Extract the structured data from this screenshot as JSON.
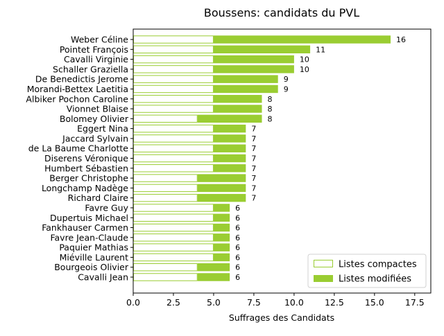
{
  "chart_data": {
    "type": "bar",
    "orientation": "horizontal",
    "stacked": true,
    "title": "Boussens: candidats du PVL",
    "xlabel": "Suffrages des Candidats",
    "ylabel": "",
    "xlim": [
      0,
      18.5
    ],
    "xticks": [
      "0.0",
      "2.5",
      "5.0",
      "7.5",
      "10.0",
      "12.5",
      "15.0",
      "17.5"
    ],
    "xtick_values": [
      0,
      2.5,
      5,
      7.5,
      10,
      12.5,
      15,
      17.5
    ],
    "grid": false,
    "legend_position": "bottom-right",
    "categories": [
      "Weber Céline",
      "Pointet François",
      "Cavalli Virginie",
      "Schaller Graziella",
      "De Benedictis Jerome",
      "Morandi-Bettex Laetitia",
      "Albiker Pochon Caroline",
      "Vionnet Blaise",
      "Bolomey Olivier",
      "Eggert Nina",
      "Jaccard Sylvain",
      "de La Baume Charlotte",
      "Diserens Véronique",
      "Humbert Sébastien",
      "Berger Christophe",
      "Longchamp Nadège",
      "Richard Claire",
      "Favre Guy",
      "Dupertuis Michael",
      "Fankhauser Carmen",
      "Favre Jean-Claude",
      "Paquier Mathias",
      "Miéville Laurent",
      "Bourgeois Olivier",
      "Cavalli Jean"
    ],
    "series": [
      {
        "name": "Listes compactes",
        "color": "#9acd32",
        "style": "outline",
        "values": [
          5,
          5,
          5,
          5,
          5,
          5,
          5,
          5,
          4,
          5,
          5,
          5,
          5,
          5,
          4,
          4,
          4,
          5,
          5,
          5,
          5,
          5,
          5,
          4,
          4
        ]
      },
      {
        "name": "Listes modifiées",
        "color": "#9acd32",
        "style": "filled",
        "values": [
          11,
          6,
          5,
          5,
          4,
          4,
          3,
          3,
          4,
          2,
          2,
          2,
          2,
          2,
          3,
          3,
          3,
          1,
          1,
          1,
          1,
          1,
          1,
          2,
          2
        ]
      }
    ],
    "totals": [
      "16",
      "11",
      "10",
      "10",
      "9",
      "9",
      "8",
      "8",
      "8",
      "7",
      "7",
      "7",
      "7",
      "7",
      "7",
      "7",
      "7",
      "6",
      "6",
      "6",
      "6",
      "6",
      "6",
      "6",
      "6"
    ]
  }
}
